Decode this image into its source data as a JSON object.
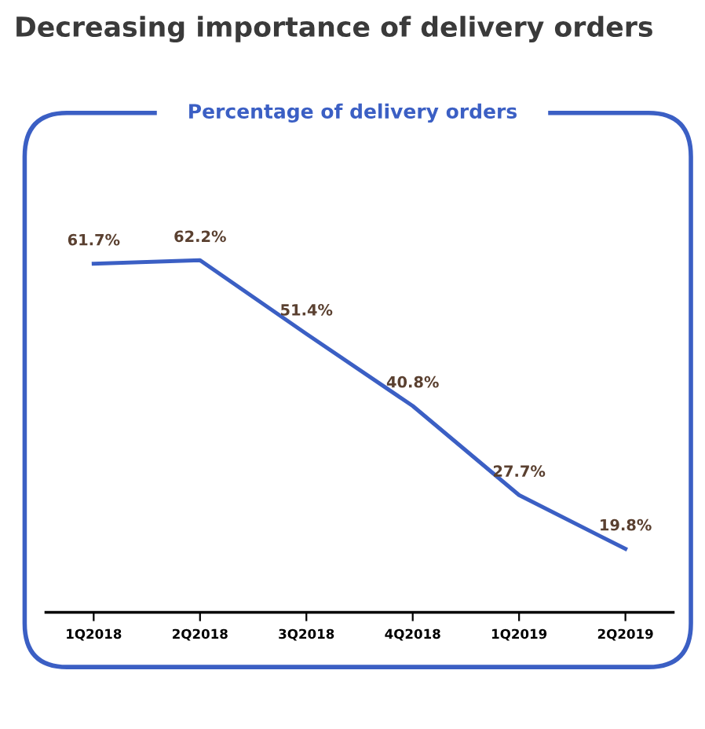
{
  "chart_data": {
    "type": "line",
    "title": "Decreasing importance of delivery orders",
    "subtitle": "Percentage of delivery orders",
    "categories": [
      "1Q2018",
      "2Q2018",
      "3Q2018",
      "4Q2018",
      "1Q2019",
      "2Q2019"
    ],
    "series": [
      {
        "color": "#3b5fc4",
        "values": [
          61.7,
          62.2,
          51.4,
          40.8,
          27.7,
          19.8
        ],
        "value_labels": [
          "61.7%",
          "62.2%",
          "51.4%",
          "40.8%",
          "27.7%",
          "19.8%"
        ]
      }
    ],
    "tick_labels": "x",
    "grid": false,
    "legend": false,
    "marker": "none",
    "line_style": "solid"
  }
}
